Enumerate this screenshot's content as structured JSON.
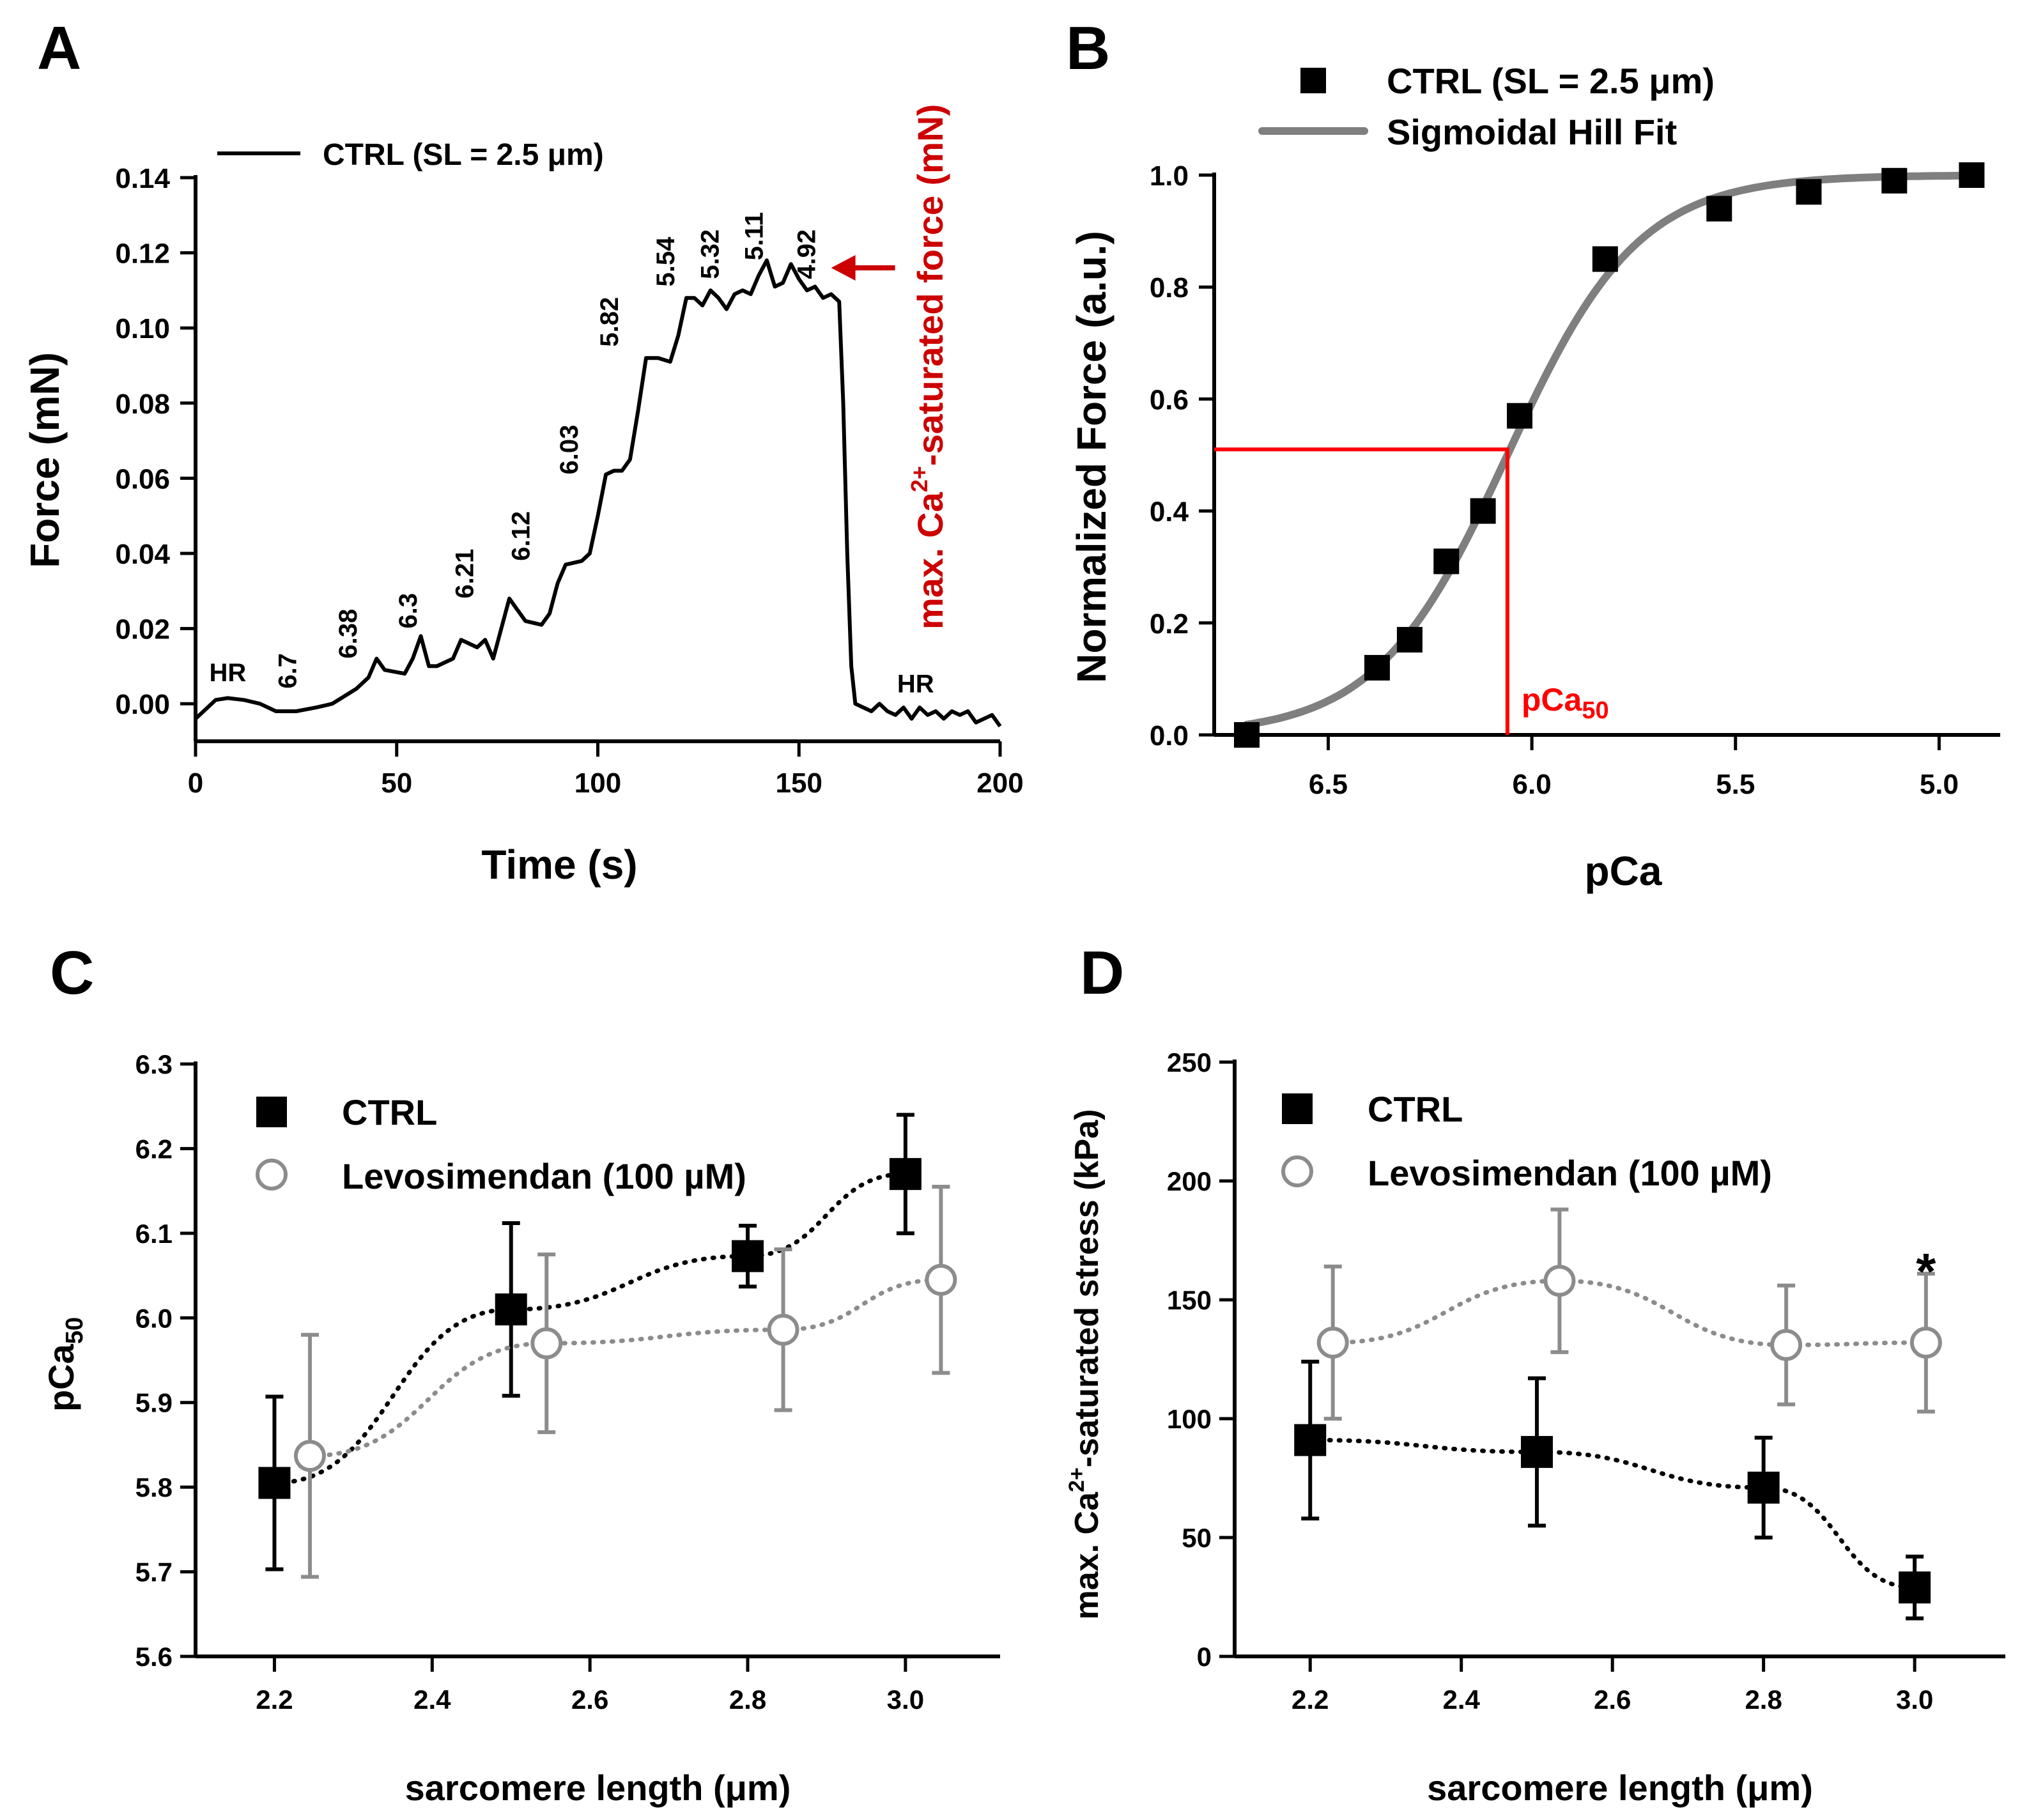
{
  "figure": {
    "panels": [
      {
        "id": "A",
        "label": "A"
      },
      {
        "id": "B",
        "label": "B"
      },
      {
        "id": "C",
        "label": "C"
      },
      {
        "id": "D",
        "label": "D"
      }
    ]
  },
  "chart_data": [
    {
      "panel": "A",
      "type": "line",
      "title": "",
      "xlabel": "Time (s)",
      "ylabel": "Force (mN)",
      "xlim": [
        0,
        200
      ],
      "ylim": [
        -0.01,
        0.14
      ],
      "xticks": [
        0,
        50,
        100,
        150,
        200
      ],
      "yticks": [
        0.0,
        0.02,
        0.04,
        0.06,
        0.08,
        0.1,
        0.12,
        0.14
      ],
      "ytick_labels": [
        "0.00",
        "0.02",
        "0.04",
        "0.06",
        "0.08",
        "0.10",
        "0.12",
        "0.14"
      ],
      "legend": {
        "placement": "top-left",
        "entries": [
          "CTRL (SL = 2.5 μm)"
        ]
      },
      "series": [
        {
          "name": "CTRL (SL = 2.5 μm)",
          "color": "#000000",
          "points": [
            [
              0,
              -0.004
            ],
            [
              3,
              -0.001
            ],
            [
              5,
              0.001
            ],
            [
              8,
              0.0015
            ],
            [
              12,
              0.001
            ],
            [
              16,
              0.0
            ],
            [
              20,
              -0.002
            ],
            [
              25,
              -0.002
            ],
            [
              30,
              -0.001
            ],
            [
              34,
              0.0
            ],
            [
              37,
              0.002
            ],
            [
              40,
              0.004
            ],
            [
              43,
              0.007
            ],
            [
              45,
              0.012
            ],
            [
              47,
              0.009
            ],
            [
              52,
              0.008
            ],
            [
              54,
              0.012
            ],
            [
              56,
              0.018
            ],
            [
              58,
              0.01
            ],
            [
              60,
              0.01
            ],
            [
              64,
              0.012
            ],
            [
              66,
              0.017
            ],
            [
              68,
              0.016
            ],
            [
              70,
              0.015
            ],
            [
              72,
              0.017
            ],
            [
              74,
              0.012
            ],
            [
              76,
              0.02
            ],
            [
              78,
              0.028
            ],
            [
              80,
              0.025
            ],
            [
              82,
              0.022
            ],
            [
              86,
              0.021
            ],
            [
              88,
              0.024
            ],
            [
              90,
              0.032
            ],
            [
              92,
              0.037
            ],
            [
              96,
              0.038
            ],
            [
              98,
              0.04
            ],
            [
              100,
              0.05
            ],
            [
              102,
              0.061
            ],
            [
              104,
              0.062
            ],
            [
              106,
              0.062
            ],
            [
              108,
              0.065
            ],
            [
              110,
              0.078
            ],
            [
              112,
              0.092
            ],
            [
              115,
              0.092
            ],
            [
              118,
              0.091
            ],
            [
              120,
              0.098
            ],
            [
              122,
              0.108
            ],
            [
              124,
              0.108
            ],
            [
              126,
              0.106
            ],
            [
              128,
              0.11
            ],
            [
              130,
              0.108
            ],
            [
              132,
              0.105
            ],
            [
              134,
              0.109
            ],
            [
              136,
              0.11
            ],
            [
              138,
              0.109
            ],
            [
              140,
              0.114
            ],
            [
              142,
              0.118
            ],
            [
              144,
              0.111
            ],
            [
              146,
              0.112
            ],
            [
              148,
              0.117
            ],
            [
              150,
              0.113
            ],
            [
              152,
              0.11
            ],
            [
              154,
              0.111
            ],
            [
              156,
              0.108
            ],
            [
              158,
              0.109
            ],
            [
              160,
              0.107
            ],
            [
              161,
              0.08
            ],
            [
              162,
              0.04
            ],
            [
              163,
              0.01
            ],
            [
              164,
              0.0
            ],
            [
              166,
              -0.001
            ],
            [
              168,
              -0.002
            ],
            [
              170,
              0.0
            ],
            [
              172,
              -0.002
            ],
            [
              174,
              -0.003
            ],
            [
              176,
              -0.001
            ],
            [
              178,
              -0.004
            ],
            [
              180,
              -0.001
            ],
            [
              182,
              -0.003
            ],
            [
              184,
              -0.002
            ],
            [
              186,
              -0.004
            ],
            [
              188,
              -0.002
            ],
            [
              190,
              -0.003
            ],
            [
              192,
              -0.002
            ],
            [
              194,
              -0.005
            ],
            [
              196,
              -0.004
            ],
            [
              198,
              -0.003
            ],
            [
              200,
              -0.006
            ]
          ]
        }
      ],
      "annotations": [
        {
          "text": "HR",
          "x": 8,
          "y": 0.006
        },
        {
          "text": "6.7",
          "x": 25,
          "y": 0.004,
          "rotated": true
        },
        {
          "text": "6.38",
          "x": 40,
          "y": 0.012,
          "rotated": true
        },
        {
          "text": "6.3",
          "x": 55,
          "y": 0.02,
          "rotated": true
        },
        {
          "text": "6.21",
          "x": 69,
          "y": 0.028,
          "rotated": true
        },
        {
          "text": "6.12",
          "x": 83,
          "y": 0.038,
          "rotated": true
        },
        {
          "text": "6.03",
          "x": 95,
          "y": 0.061,
          "rotated": true
        },
        {
          "text": "5.82",
          "x": 105,
          "y": 0.095,
          "rotated": true
        },
        {
          "text": "5.54",
          "x": 119,
          "y": 0.111,
          "rotated": true
        },
        {
          "text": "5.32",
          "x": 130,
          "y": 0.113,
          "rotated": true
        },
        {
          "text": "5.11",
          "x": 141,
          "y": 0.118,
          "rotated": true
        },
        {
          "text": "4.92",
          "x": 154,
          "y": 0.113,
          "rotated": true
        },
        {
          "text": "HR",
          "x": 179,
          "y": 0.003
        }
      ],
      "arrow": {
        "text_prefix": "max. Ca",
        "text_sup": "2+",
        "text_suffix": "-saturated force (mN)",
        "color": "#cc0000",
        "target_x": 158,
        "target_y": 0.116
      }
    },
    {
      "panel": "B",
      "type": "scatter",
      "title": "",
      "xlabel": "pCa",
      "ylabel": "Normalized Force (a.u.)",
      "xlim": [
        6.78,
        4.85
      ],
      "ylim": [
        0,
        1.0
      ],
      "x_reversed": true,
      "xticks": [
        6.5,
        6.0,
        5.5,
        5.0
      ],
      "xtick_labels": [
        "6.5",
        "6.0",
        "5.5",
        "5.0"
      ],
      "yticks": [
        0.0,
        0.2,
        0.4,
        0.6,
        0.8,
        1.0
      ],
      "ytick_labels": [
        "0.0",
        "0.2",
        "0.4",
        "0.6",
        "0.8",
        "1.0"
      ],
      "legend": {
        "placement": "top",
        "entries": [
          "CTRL (SL = 2.5 μm)",
          "Sigmoidal Hill Fit"
        ]
      },
      "series": [
        {
          "name": "CTRL (SL = 2.5 μm)",
          "marker": "square",
          "color": "#000000",
          "x": [
            6.7,
            6.38,
            6.3,
            6.21,
            6.12,
            6.03,
            5.82,
            5.54,
            5.32,
            5.11,
            4.92
          ],
          "y": [
            0.0,
            0.12,
            0.17,
            0.31,
            0.4,
            0.57,
            0.85,
            0.94,
            0.97,
            0.99,
            1.0
          ]
        },
        {
          "name": "Sigmoidal Hill Fit",
          "type": "line",
          "color": "#7f7f7f",
          "pCa50": 6.06,
          "hill": 2.7,
          "range": [
            6.7,
            4.92
          ]
        }
      ],
      "reference": {
        "label": "pCa",
        "label_sub": "50",
        "x": 6.06,
        "y": 0.51,
        "color": "#ff0000"
      }
    },
    {
      "panel": "C",
      "type": "scatter",
      "title": "",
      "xlabel": "sarcomere length (μm)",
      "ylabel_main": "pCa",
      "ylabel_sub": "50",
      "xlim": [
        2.1,
        3.12
      ],
      "ylim": [
        5.6,
        6.3
      ],
      "xticks": [
        2.2,
        2.4,
        2.6,
        2.8,
        3.0
      ],
      "xtick_labels": [
        "2.2",
        "2.4",
        "2.6",
        "2.8",
        "3.0"
      ],
      "yticks": [
        5.6,
        5.7,
        5.8,
        5.9,
        6.0,
        6.1,
        6.2,
        6.3
      ],
      "ytick_labels": [
        "5.6",
        "5.7",
        "5.8",
        "5.9",
        "6.0",
        "6.1",
        "6.2",
        "6.3"
      ],
      "legend": {
        "placement": "top-left",
        "entries": [
          "CTRL",
          "Levosimendan (100 µM)"
        ]
      },
      "series": [
        {
          "name": "CTRL",
          "marker": "square",
          "color": "#000000",
          "x": [
            2.2,
            2.5,
            2.8,
            3.0
          ],
          "y": [
            5.805,
            6.01,
            6.073,
            6.17
          ],
          "err": [
            0.102,
            0.102,
            0.036,
            0.07
          ]
        },
        {
          "name": "Levosimendan (100 µM)",
          "marker": "circle-open",
          "color": "#8c8c8c",
          "x": [
            2.245,
            2.545,
            2.845,
            3.045
          ],
          "y": [
            5.837,
            5.97,
            5.986,
            6.045
          ],
          "err": [
            0.143,
            0.105,
            0.095,
            0.11
          ]
        }
      ]
    },
    {
      "panel": "D",
      "type": "scatter",
      "title": "",
      "xlabel": "sarcomere length (μm)",
      "ylabel_prefix": "max. Ca",
      "ylabel_sup": "2+",
      "ylabel_suffix": "-saturated stress (kPa)",
      "xlim": [
        2.1,
        3.12
      ],
      "ylim": [
        0,
        250
      ],
      "xticks": [
        2.2,
        2.4,
        2.6,
        2.8,
        3.0
      ],
      "xtick_labels": [
        "2.2",
        "2.4",
        "2.6",
        "2.8",
        "3.0"
      ],
      "yticks": [
        0,
        50,
        100,
        150,
        200,
        250
      ],
      "ytick_labels": [
        "0",
        "50",
        "100",
        "150",
        "200",
        "250"
      ],
      "legend": {
        "placement": "top-left",
        "entries": [
          "CTRL",
          "Levosimendan (100 µM)"
        ]
      },
      "series": [
        {
          "name": "CTRL",
          "marker": "square",
          "color": "#000000",
          "x": [
            2.2,
            2.5,
            2.8,
            3.0
          ],
          "y": [
            91,
            86,
            71,
            29
          ],
          "err": [
            33,
            31,
            21,
            13
          ]
        },
        {
          "name": "Levosimendan (100 µM)",
          "marker": "circle-open",
          "color": "#8c8c8c",
          "x": [
            2.23,
            2.53,
            2.83,
            3.015
          ],
          "y": [
            132,
            158,
            131,
            132
          ],
          "err": [
            32,
            30,
            25,
            29
          ]
        }
      ],
      "significance": {
        "text": "*",
        "x": 3.015,
        "y": 168
      }
    }
  ]
}
